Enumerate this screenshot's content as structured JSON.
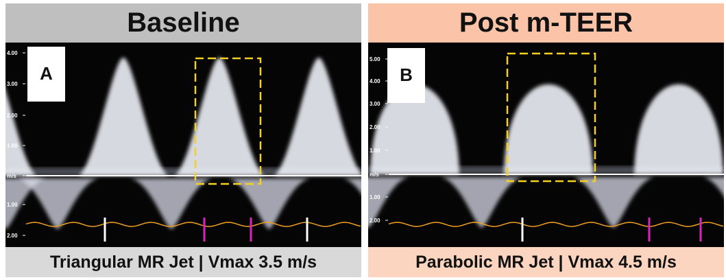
{
  "panels": [
    {
      "title": "Baseline",
      "letter": "A",
      "ticks": [
        "4.00",
        "3.00",
        "2.00",
        "1.00",
        "m/s",
        "1.00",
        "2.00"
      ],
      "caption": "Triangular MR Jet | Vmax 3.5 m/s"
    },
    {
      "title": "Post m-TEER",
      "letter": "B",
      "ticks": [
        "5.00",
        "4.00",
        "3.00",
        "2.00",
        "1.00",
        "m/s",
        "1.00",
        "2.00"
      ],
      "caption": "Parabolic MR Jet | Vmax 4.5 m/s"
    }
  ]
}
